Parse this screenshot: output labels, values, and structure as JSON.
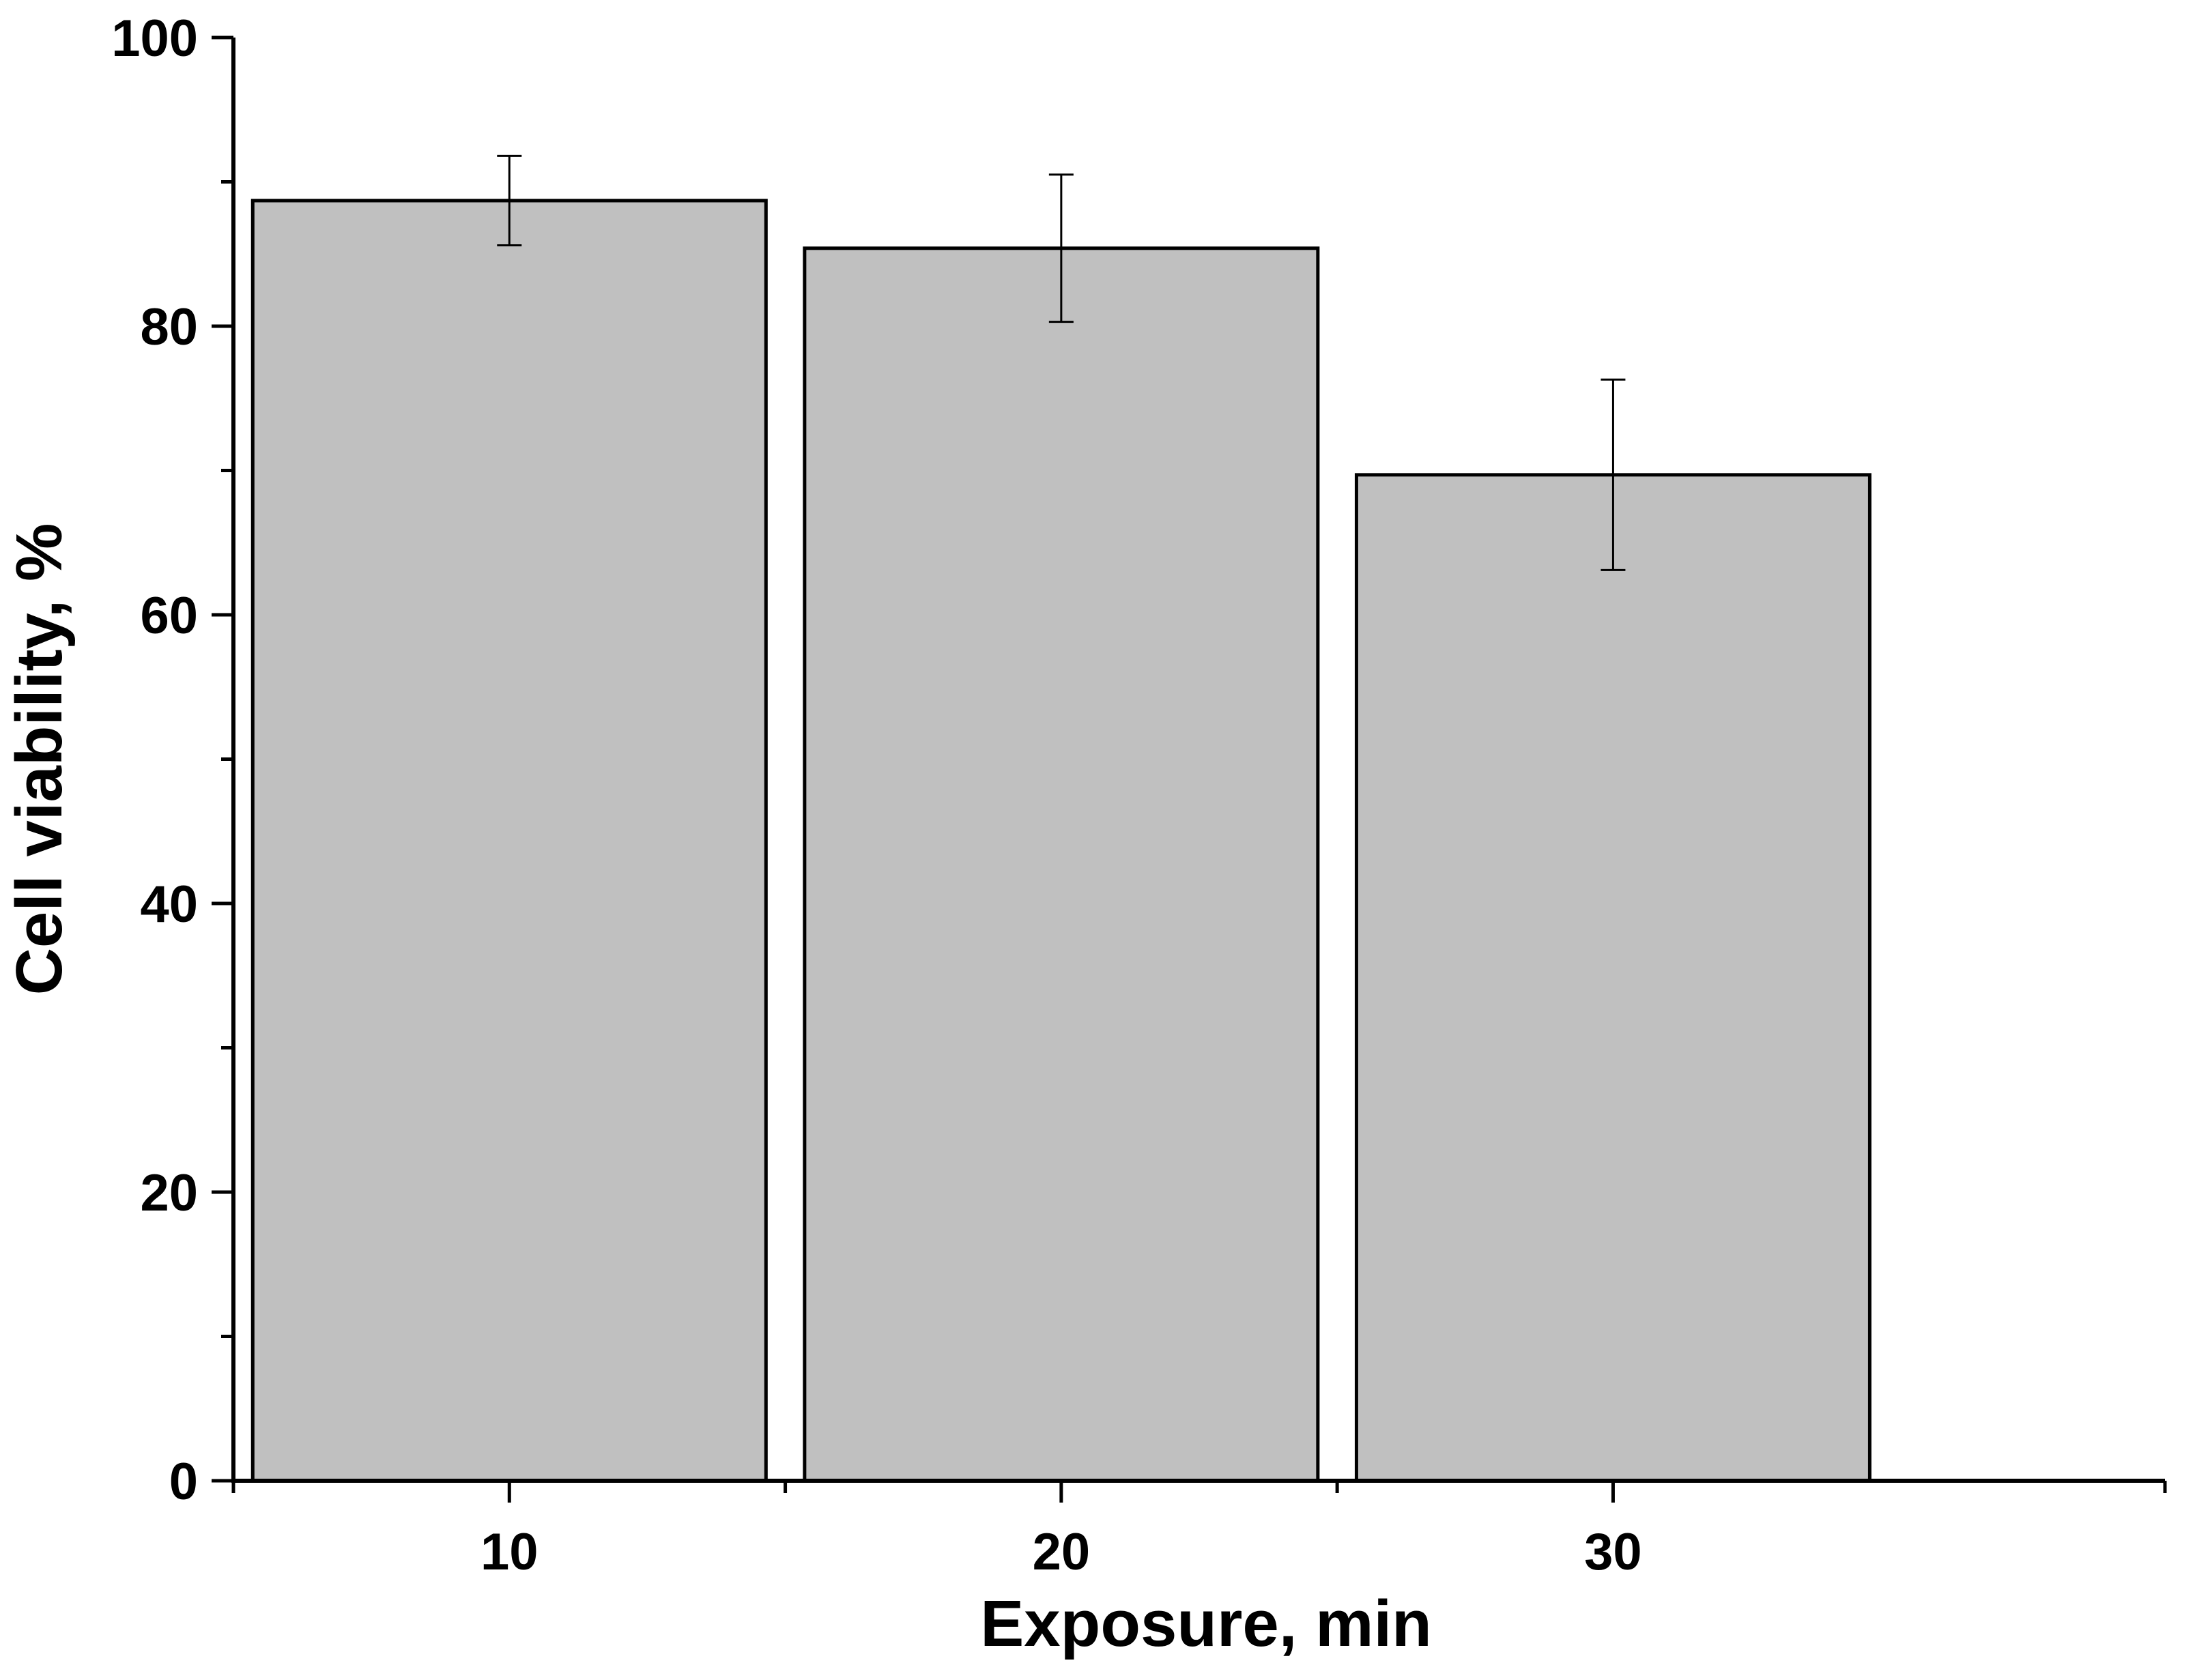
{
  "chart_data": {
    "type": "bar",
    "categories": [
      "10",
      "20",
      "30"
    ],
    "values": [
      88.7,
      85.4,
      69.7
    ],
    "errors": [
      3.1,
      5.1,
      6.6
    ],
    "xlabel": "Exposure, min",
    "ylabel": "Cell viability, %",
    "ylim": [
      0,
      100
    ],
    "yticks": [
      0,
      20,
      40,
      60,
      80,
      100
    ],
    "grid": false,
    "legend": "none",
    "colors": {
      "bar_fill": "#c0c0c0",
      "bar_edge": "#000000",
      "axis": "#000000"
    }
  }
}
